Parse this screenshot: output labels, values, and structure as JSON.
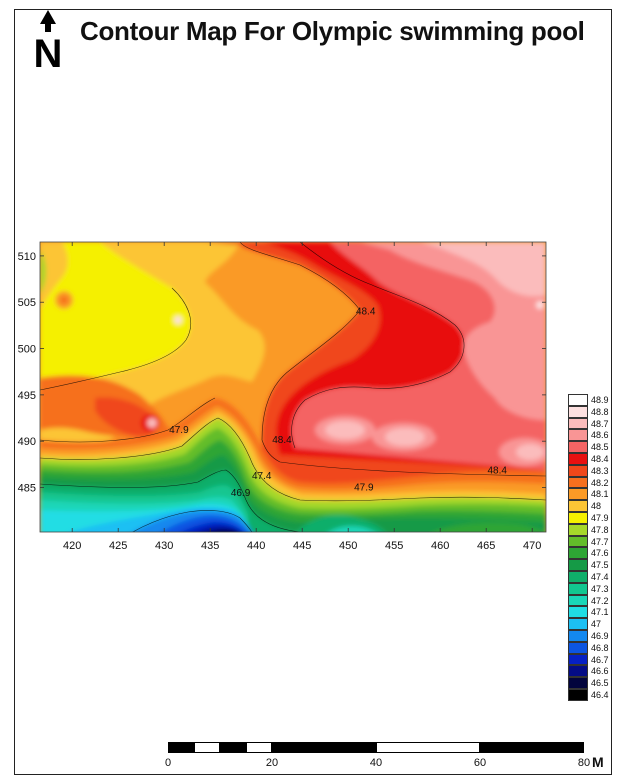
{
  "title": "Contour Map For Olympic swimming pool",
  "north_symbol": "N",
  "north_icon": "north-arrow-icon",
  "axes": {
    "x_ticks": [
      420,
      425,
      430,
      435,
      440,
      445,
      450,
      455,
      460,
      465,
      470
    ],
    "y_ticks": [
      485,
      490,
      495,
      500,
      505,
      510
    ],
    "xlim": [
      416.5,
      471.5
    ],
    "ylim": [
      480.2,
      511.5
    ]
  },
  "contour_labels": [
    {
      "text": "48.4",
      "x": 451.9,
      "y": 503.7
    },
    {
      "text": "47.9",
      "x": 431.6,
      "y": 490.9
    },
    {
      "text": "48.4",
      "x": 442.8,
      "y": 489.8
    },
    {
      "text": "47.4",
      "x": 440.6,
      "y": 485.9
    },
    {
      "text": "46.9",
      "x": 438.3,
      "y": 484.1
    },
    {
      "text": "47.9",
      "x": 451.7,
      "y": 484.7
    },
    {
      "text": "48.4",
      "x": 466.2,
      "y": 486.5
    }
  ],
  "legend": [
    {
      "label": "48.9",
      "color": "#ffffff"
    },
    {
      "label": "48.8",
      "color": "#fde0e0"
    },
    {
      "label": "48.7",
      "color": "#fbbcbc"
    },
    {
      "label": "48.6",
      "color": "#f99595"
    },
    {
      "label": "48.5",
      "color": "#f46464"
    },
    {
      "label": "48.4",
      "color": "#e81010"
    },
    {
      "label": "48.3",
      "color": "#f0471a"
    },
    {
      "label": "48.2",
      "color": "#f66f1e"
    },
    {
      "label": "48.1",
      "color": "#fa9a26"
    },
    {
      "label": "48",
      "color": "#fcc535"
    },
    {
      "label": "47.9",
      "color": "#f5f000"
    },
    {
      "label": "47.8",
      "color": "#a6d82a"
    },
    {
      "label": "47.7",
      "color": "#63bd2a"
    },
    {
      "label": "47.6",
      "color": "#2ea534"
    },
    {
      "label": "47.5",
      "color": "#159a46"
    },
    {
      "label": "47.4",
      "color": "#0fae6a"
    },
    {
      "label": "47.3",
      "color": "#12c690"
    },
    {
      "label": "47.2",
      "color": "#1ad6b8"
    },
    {
      "label": "47.1",
      "color": "#20dde4"
    },
    {
      "label": "47",
      "color": "#1cc0f3"
    },
    {
      "label": "46.9",
      "color": "#1388ee"
    },
    {
      "label": "46.8",
      "color": "#0c55e2"
    },
    {
      "label": "46.7",
      "color": "#0620c4"
    },
    {
      "label": "46.6",
      "color": "#040c86"
    },
    {
      "label": "46.5",
      "color": "#02043d"
    },
    {
      "label": "46.4",
      "color": "#000000"
    }
  ],
  "scale_bar": {
    "labels": [
      "0",
      "20",
      "40",
      "60",
      "80"
    ],
    "unit": "M",
    "segments": [
      "black",
      "white",
      "black",
      "white",
      "black",
      "white",
      "black"
    ]
  }
}
